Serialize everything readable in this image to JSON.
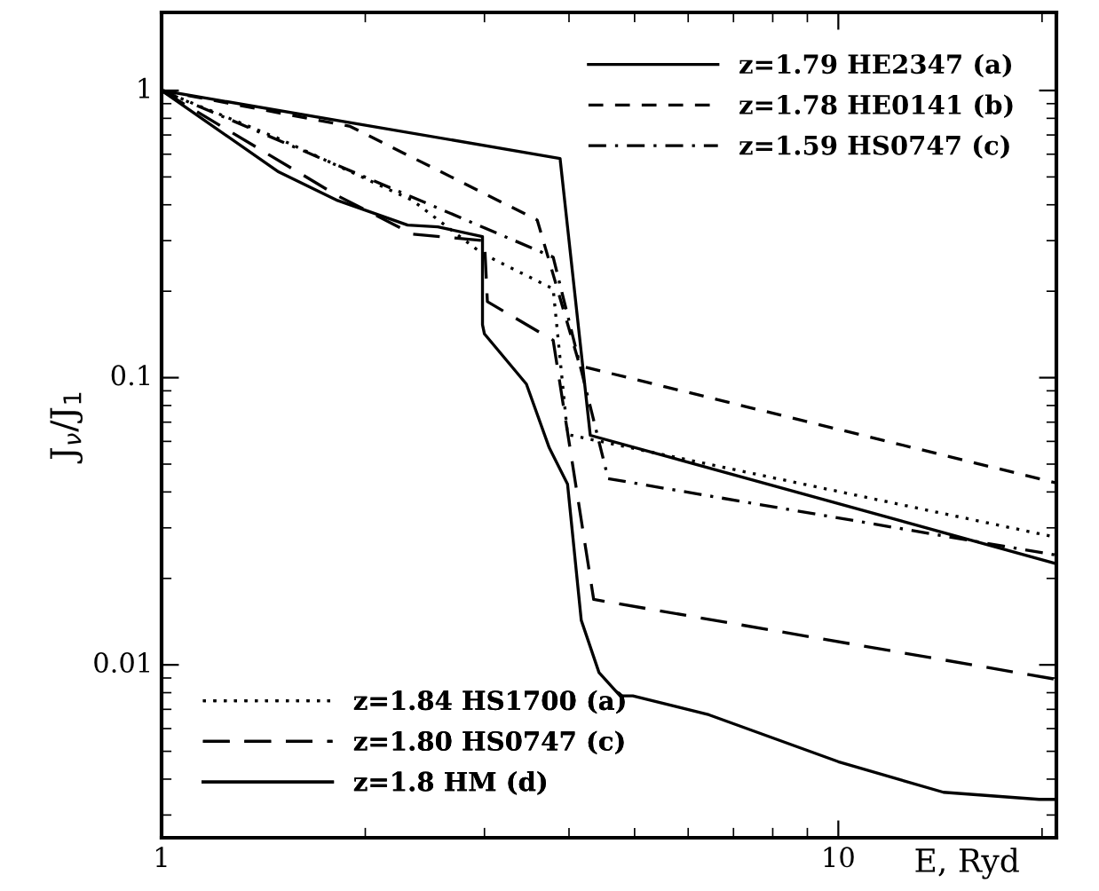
{
  "chart_data": {
    "type": "line",
    "xlabel": "E, Ryd",
    "ylabel": "J$_{ν}$/J$_{1}$",
    "log": "xy",
    "xlim": [
      1,
      21
    ],
    "ylim": [
      0.0025,
      1.87
    ],
    "xticks": [
      1,
      10
    ],
    "yticks": [
      {
        "value": 0.01,
        "label": "0.01"
      },
      {
        "value": 0.1,
        "label": "0.1"
      },
      1
    ],
    "legend": [
      "top right",
      "bottom left"
    ],
    "grid": false,
    "series": [
      {
        "name": "z=1.79 HE2347 (a)",
        "color": "#000000",
        "line_style": "solid",
        "x": [
          1,
          3.88,
          4.3,
          21
        ],
        "values": [
          1,
          0.58,
          0.063,
          0.0225
        ]
      },
      {
        "name": "z=1.78 HE0141 (b)",
        "color": "#000000",
        "line_style": "dashed",
        "x": [
          1,
          1.9,
          3.59,
          4.15,
          21
        ],
        "values": [
          1,
          0.75,
          0.354,
          0.11,
          0.043
        ]
      },
      {
        "name": "z=1.59 HS0747 (c)",
        "color": "#000000",
        "line_style": "dashdot",
        "x": [
          1,
          3.79,
          4.57,
          21
        ],
        "values": [
          1,
          0.263,
          0.0445,
          0.0241
        ]
      },
      {
        "name": "z=1.84 HS1700 (a)",
        "color": "#000000",
        "line_style": "dotted",
        "x": [
          1,
          1.49,
          2.35,
          2.98,
          3.79,
          3.98,
          21
        ],
        "values": [
          1,
          0.68,
          0.414,
          0.27,
          0.204,
          0.0634,
          0.0278
        ]
      },
      {
        "name": "z=1.80 HS0747 (c)",
        "color": "#000000",
        "line_style": "longdash",
        "x": [
          1,
          1.82,
          2.35,
          3.0,
          3.03,
          3.79,
          4.35,
          21
        ],
        "values": [
          1,
          0.43,
          0.316,
          0.3,
          0.184,
          0.135,
          0.0169,
          0.0089
        ]
      },
      {
        "name": "z=1.8 HM (d)",
        "color": "#000000",
        "line_style": "solid",
        "x": [
          1,
          1.49,
          1.82,
          2.31,
          2.56,
          2.98,
          2.98,
          3.0,
          3.46,
          3.74,
          3.98,
          4.17,
          4.43,
          4.76,
          4.97,
          6.44,
          10,
          14.3,
          19.8,
          21
        ],
        "values": [
          1,
          0.52,
          0.414,
          0.34,
          0.335,
          0.31,
          0.153,
          0.142,
          0.095,
          0.057,
          0.0426,
          0.0143,
          0.0094,
          0.0078,
          0.0078,
          0.0067,
          0.0046,
          0.0036,
          0.0034,
          0.0034
        ]
      }
    ]
  }
}
